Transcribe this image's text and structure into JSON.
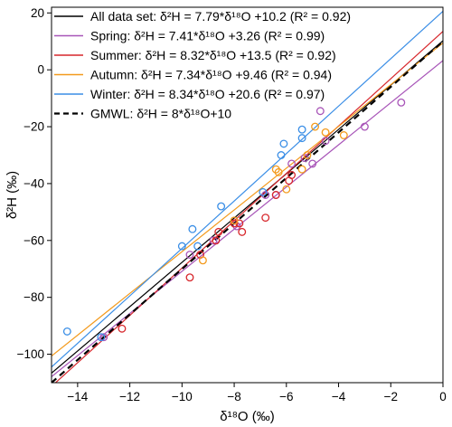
{
  "chart_data": {
    "type": "scatter",
    "xlabel": "δ¹⁸O (‰)",
    "ylabel": "δ²H (‰)",
    "xlim": [
      -15,
      0
    ],
    "ylim": [
      -110,
      22
    ],
    "xticks": [
      -14,
      -12,
      -10,
      -8,
      -6,
      -4,
      -2,
      0
    ],
    "yticks": [
      -100,
      -80,
      -60,
      -40,
      -20,
      0,
      20
    ],
    "grid": false,
    "legend_position": "top-left",
    "lines": [
      {
        "name": "All data set",
        "label": "All data set: δ²H = 7.79*δ¹⁸O +10.2 (R² = 0.92)",
        "slope": 7.79,
        "intercept": 10.2,
        "color": "#000000",
        "dash": "solid"
      },
      {
        "name": "Spring",
        "label": "Spring: δ²H = 7.41*δ¹⁸O +3.26 (R² = 0.99)",
        "slope": 7.41,
        "intercept": 3.26,
        "color": "#a855b8",
        "dash": "solid"
      },
      {
        "name": "Summer",
        "label": "Summer: δ²H = 8.32*δ¹⁸O +13.5 (R² = 0.92)",
        "slope": 8.32,
        "intercept": 13.5,
        "color": "#d7262b",
        "dash": "solid"
      },
      {
        "name": "Autumn",
        "label": "Autumn: δ²H = 7.34*δ¹⁸O +9.46 (R² = 0.94)",
        "slope": 7.34,
        "intercept": 9.46,
        "color": "#f39a1c",
        "dash": "solid"
      },
      {
        "name": "Winter",
        "label": "Winter: δ²H = 8.34*δ¹⁸O +20.6 (R² = 0.97)",
        "slope": 8.34,
        "intercept": 20.6,
        "color": "#3a8ee6",
        "dash": "solid"
      },
      {
        "name": "GMWL",
        "label": "GMWL: δ²H = 8*δ¹⁸O+10",
        "slope": 8,
        "intercept": 10,
        "color": "#000000",
        "dash": "dashed"
      }
    ],
    "series": [
      {
        "name": "Spring",
        "color": "#a855b8",
        "points": [
          [
            -13.0,
            -94
          ],
          [
            -9.7,
            -65
          ],
          [
            -8.8,
            -60
          ],
          [
            -7.9,
            -55
          ],
          [
            -6.8,
            -44
          ],
          [
            -6.4,
            -44
          ],
          [
            -5.8,
            -33
          ],
          [
            -5.3,
            -31
          ],
          [
            -5.0,
            -33
          ],
          [
            -4.7,
            -14.5
          ],
          [
            -4.5,
            -25
          ],
          [
            -3.0,
            -20
          ],
          [
            -1.6,
            -11.5
          ]
        ]
      },
      {
        "name": "Summer",
        "color": "#d7262b",
        "points": [
          [
            -12.3,
            -91
          ],
          [
            -9.7,
            -73
          ],
          [
            -9.3,
            -65
          ],
          [
            -8.7,
            -60
          ],
          [
            -8.6,
            -57
          ],
          [
            -8.0,
            -54
          ],
          [
            -7.8,
            -54
          ],
          [
            -7.7,
            -57
          ],
          [
            -6.8,
            -52
          ],
          [
            -6.4,
            -44
          ],
          [
            -5.9,
            -39
          ],
          [
            -5.8,
            -37
          ]
        ]
      },
      {
        "name": "Autumn",
        "color": "#f39a1c",
        "points": [
          [
            -9.2,
            -67
          ],
          [
            -8.0,
            -53
          ],
          [
            -6.4,
            -35
          ],
          [
            -6.3,
            -36
          ],
          [
            -6.0,
            -42
          ],
          [
            -5.4,
            -35
          ],
          [
            -5.2,
            -30
          ],
          [
            -4.9,
            -20
          ],
          [
            -4.5,
            -22
          ],
          [
            -3.8,
            -23
          ]
        ]
      },
      {
        "name": "Winter",
        "color": "#3a8ee6",
        "points": [
          [
            -14.4,
            -92
          ],
          [
            -13.1,
            -94
          ],
          [
            -10.0,
            -62
          ],
          [
            -9.6,
            -56
          ],
          [
            -9.4,
            -62
          ],
          [
            -8.5,
            -48
          ],
          [
            -6.9,
            -43
          ],
          [
            -6.2,
            -30
          ],
          [
            -6.1,
            -26
          ],
          [
            -5.4,
            -21
          ],
          [
            -5.4,
            -24
          ]
        ]
      }
    ]
  }
}
